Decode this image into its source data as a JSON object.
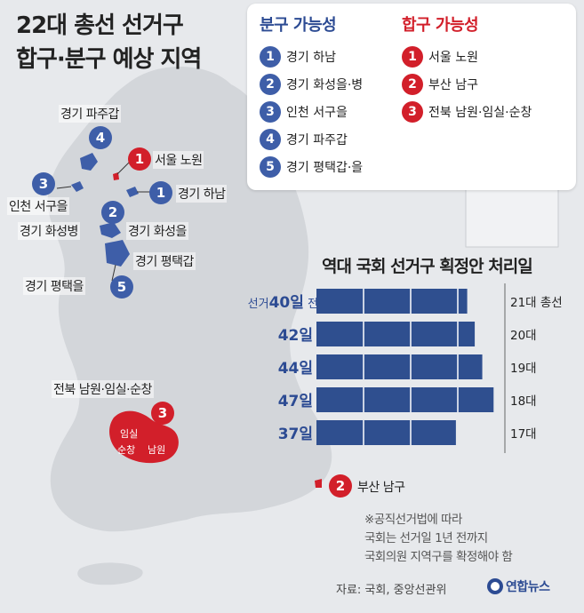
{
  "title": [
    "22대 총선 선거구",
    "합구·분구 예상 지역"
  ],
  "legend": {
    "split_title": "분구 가능성",
    "merge_title": "합구 가능성",
    "split_items": [
      {
        "num": "1",
        "name": "경기 하남"
      },
      {
        "num": "2",
        "name": "경기 화성을·병"
      },
      {
        "num": "3",
        "name": "인천 서구을"
      },
      {
        "num": "4",
        "name": "경기 파주갑"
      },
      {
        "num": "5",
        "name": "경기 평택갑·을"
      }
    ],
    "merge_items": [
      {
        "num": "1",
        "name": "서울 노원"
      },
      {
        "num": "2",
        "name": "부산 남구"
      },
      {
        "num": "3",
        "name": "전북 남원·임실·순창"
      }
    ]
  },
  "map": {
    "labels": {
      "paju": "경기 파주갑",
      "nowon": "서울 노원",
      "incheon": "인천 서구을",
      "hanam": "경기 하남",
      "hwaseong_byeong": "경기 화성병",
      "hwaseong_eul": "경기 화성을",
      "pyeongtaek_gap": "경기 평택갑",
      "pyeongtaek_eul": "경기 평택을",
      "jeonbuk": "전북 남원·임실·순창",
      "busan": "부산 남구",
      "imsil": "임실",
      "sunchang": "순창",
      "namwon": "남원"
    },
    "badges": {
      "paju": "4",
      "nowon": "1",
      "incheon": "3",
      "hanam": "1",
      "hwaseong": "2",
      "pyeongtaek": "5",
      "jeonbuk": "3",
      "busan": "2"
    },
    "colors": {
      "split": "#3e5ea8",
      "merge": "#d21f2a",
      "land": "#d3d6da"
    }
  },
  "chart_data": {
    "type": "bar",
    "title": "역대 국회 선거구 획정안 처리일",
    "orientation": "horizontal",
    "categories": [
      "21대 총선",
      "20대",
      "19대",
      "18대",
      "17대"
    ],
    "values": [
      40,
      42,
      44,
      47,
      37
    ],
    "value_labels": [
      "40일",
      "42일",
      "44일",
      "47일",
      "37일"
    ],
    "first_label_prefix": "선거",
    "first_label_suffix": "전",
    "bar_color": "#2f4f8f",
    "xlim": [
      0,
      50
    ],
    "grid": true
  },
  "note": [
    "※공직선거법에 따라",
    "국회는 선거일 1년 전까지",
    "국회의원 지역구를 확정해야 함"
  ],
  "source": "자료: 국회, 중앙선관위",
  "logo": "연합뉴스"
}
